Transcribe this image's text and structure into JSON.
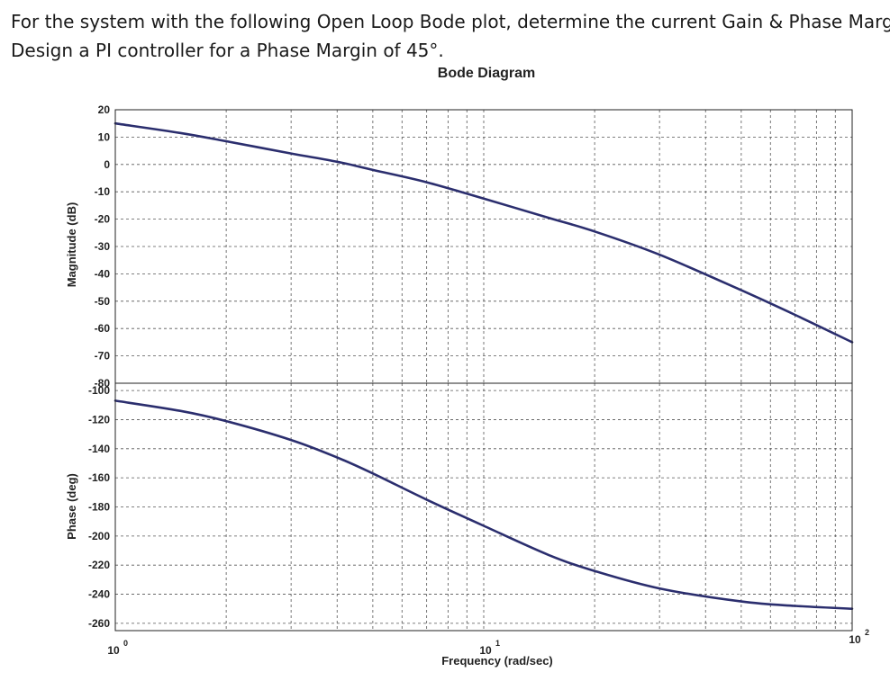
{
  "question": {
    "line1": "For the system with the following Open Loop Bode plot, determine the current Gain & Phase Margins",
    "line2": "Design a PI controller for a Phase Margin of 45°."
  },
  "chart_data": {
    "type": "line",
    "title": "Bode Diagram",
    "xlabel": "Frequency (rad/sec)",
    "xscale": "log",
    "xlim": [
      1,
      100
    ],
    "x_ticks": [
      {
        "base": "10",
        "exp": "0"
      },
      {
        "base": "10",
        "exp": "1"
      },
      {
        "base": "10",
        "exp": "2"
      }
    ],
    "grid": true,
    "subplots": [
      {
        "name": "magnitude",
        "ylabel": "Magnitude (dB)",
        "ylim": [
          -80,
          20
        ],
        "yticks": [
          "20",
          "10",
          "0",
          "-10",
          "-20",
          "-30",
          "-40",
          "-50",
          "-60",
          "-70",
          "-80"
        ],
        "x": [
          1,
          1.5,
          2,
          3,
          4,
          5,
          7,
          10,
          15,
          20,
          30,
          50,
          70,
          100
        ],
        "y": [
          15,
          11.5,
          8.5,
          4,
          1,
          -2,
          -6.5,
          -12.5,
          -19.5,
          -24.5,
          -33,
          -46,
          -55,
          -65
        ]
      },
      {
        "name": "phase",
        "ylabel": "Phase (deg)",
        "ylim": [
          -265,
          -95
        ],
        "yticks": [
          "-100",
          "-120",
          "-140",
          "-160",
          "-180",
          "-200",
          "-220",
          "-240",
          "-260"
        ],
        "x": [
          1,
          1.5,
          2,
          3,
          4,
          5,
          7,
          10,
          15,
          20,
          30,
          50,
          70,
          100
        ],
        "y": [
          -107,
          -114,
          -121,
          -134,
          -146,
          -157,
          -175,
          -193,
          -213,
          -224,
          -236,
          -245,
          -248,
          -250
        ]
      }
    ]
  }
}
